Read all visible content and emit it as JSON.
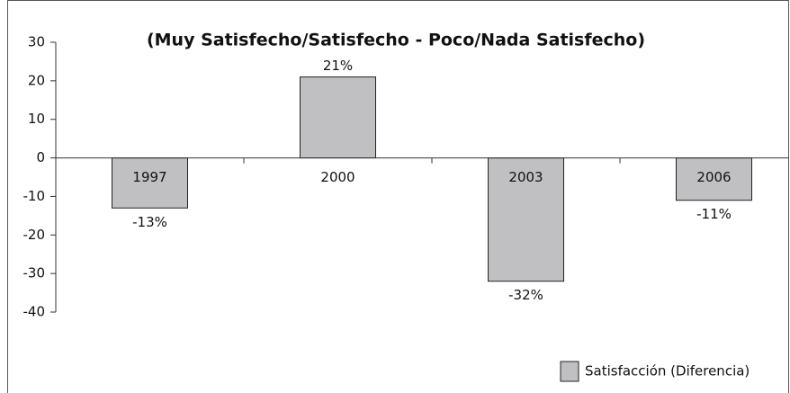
{
  "chart_data": {
    "type": "bar",
    "title": "(Muy Satisfecho/Satisfecho - Poco/Nada Satisfecho)",
    "categories": [
      "1997",
      "2000",
      "2003",
      "2006"
    ],
    "series": [
      {
        "name": "Satisfacción (Diferencia)",
        "color": "#c0c0c2",
        "values": [
          -13,
          21,
          -32,
          -11
        ],
        "value_labels": [
          "-13%",
          "21%",
          "-32%",
          "-11%"
        ]
      }
    ],
    "ylim": [
      -40,
      30
    ],
    "yticks": [
      -40,
      -30,
      -20,
      -10,
      0,
      10,
      20,
      30
    ],
    "grid": false,
    "legend": "bottom-right"
  }
}
